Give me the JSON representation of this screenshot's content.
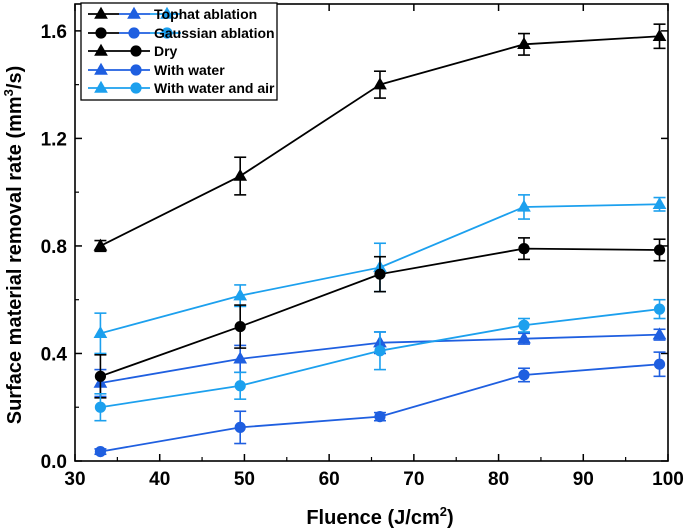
{
  "chart_data": {
    "type": "line",
    "title": "",
    "xlabel": "Fluence (J/cm",
    "xlabel_sup": "2",
    "xlabel_end": ")",
    "ylabel": "Surface material removal rate (mm",
    "ylabel_sup": "3",
    "ylabel_end": "/s)",
    "xlim": [
      30,
      100
    ],
    "ylim": [
      0.0,
      1.7
    ],
    "xticks": [
      30,
      40,
      50,
      60,
      70,
      80,
      90,
      100
    ],
    "yticks": [
      0.0,
      0.4,
      0.8,
      1.2,
      1.6
    ],
    "x": [
      33,
      49.5,
      66,
      83,
      99
    ],
    "series": [
      {
        "name": "Tophat Dry",
        "marker": "triangle",
        "color": "#000000",
        "values": [
          0.8,
          1.06,
          1.4,
          1.55,
          1.58
        ],
        "errors": [
          0.02,
          0.07,
          0.05,
          0.04,
          0.045
        ]
      },
      {
        "name": "Tophat With water",
        "marker": "triangle",
        "color": "#1f5fe0",
        "values": [
          0.29,
          0.38,
          0.44,
          0.455,
          0.47
        ],
        "errors": [
          0.05,
          0.05,
          0.04,
          0.02,
          0.02
        ]
      },
      {
        "name": "Tophat With water and air",
        "marker": "triangle",
        "color": "#1ca0ee",
        "values": [
          0.475,
          0.615,
          0.72,
          0.945,
          0.955
        ],
        "errors": [
          0.075,
          0.04,
          0.09,
          0.045,
          0.025
        ]
      },
      {
        "name": "Gaussian Dry",
        "marker": "circle",
        "color": "#000000",
        "values": [
          0.315,
          0.5,
          0.695,
          0.79,
          0.785
        ],
        "errors": [
          0.08,
          0.08,
          0.065,
          0.04,
          0.04
        ]
      },
      {
        "name": "Gaussian With water",
        "marker": "circle",
        "color": "#1f5fe0",
        "values": [
          0.035,
          0.125,
          0.165,
          0.32,
          0.36
        ],
        "errors": [
          0.01,
          0.06,
          0.015,
          0.025,
          0.045
        ]
      },
      {
        "name": "Gaussian With water and air",
        "marker": "circle",
        "color": "#1ca0ee",
        "values": [
          0.2,
          0.28,
          0.41,
          0.505,
          0.565
        ],
        "errors": [
          0.05,
          0.05,
          0.07,
          0.025,
          0.035
        ]
      }
    ],
    "legend": {
      "position": "top-left",
      "entries": [
        {
          "label": "Tophat ablation",
          "markers": "triangle",
          "colors": [
            "#000000",
            "#1f5fe0",
            "#1ca0ee"
          ]
        },
        {
          "label": "Gaussian ablation",
          "markers": "circle",
          "colors": [
            "#000000",
            "#1f5fe0",
            "#1ca0ee"
          ]
        },
        {
          "label": "Dry",
          "markers": "both",
          "colors": [
            "#000000"
          ]
        },
        {
          "label": "With water",
          "markers": "both",
          "colors": [
            "#1f5fe0"
          ]
        },
        {
          "label": "With water and air",
          "markers": "both",
          "colors": [
            "#1ca0ee"
          ]
        }
      ]
    }
  }
}
